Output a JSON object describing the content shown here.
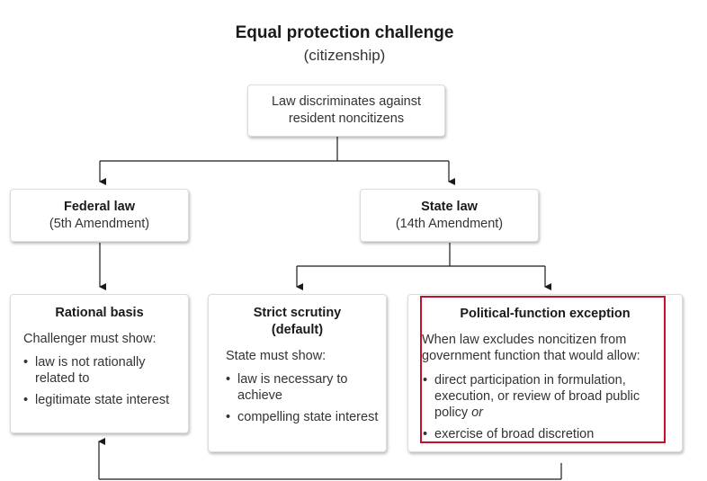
{
  "header": {
    "title": "Equal protection challenge",
    "subtitle": "(citizenship)"
  },
  "nodes": {
    "root": {
      "line1": "Law discriminates against",
      "line2": "resident noncitizens"
    },
    "federal": {
      "title": "Federal law",
      "subtitle": "(5th Amendment)"
    },
    "state": {
      "title": "State law",
      "subtitle": "(14th Amendment)"
    },
    "rational_basis": {
      "title": "Rational basis",
      "intro": "Challenger must show:",
      "items": [
        "law is not rationally related to",
        "legitimate state interest"
      ]
    },
    "strict_scrutiny": {
      "title_line1": "Strict scrutiny",
      "title_line2": "(default)",
      "intro": "State must show:",
      "items": [
        "law is necessary to achieve",
        "compelling state interest"
      ]
    },
    "political_function": {
      "title": "Political-function exception",
      "intro": "When law excludes noncitizen from government function that would allow:",
      "item1_text": "direct participation in formulation, execution, or review of broad public policy",
      "item1_suffix": "or",
      "item2_text": "exercise of broad discretion"
    }
  },
  "colors": {
    "box_border": "#dcdcdc",
    "connector": "#1a1a1a",
    "highlight": "#c8102e"
  }
}
